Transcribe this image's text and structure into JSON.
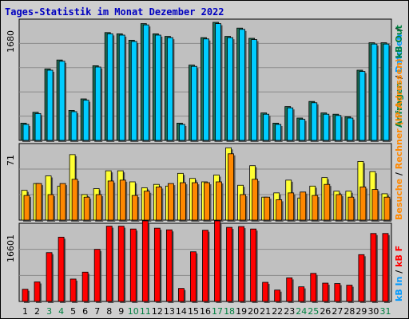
{
  "title": "Tages-Statistik im Monat Dezember 2022",
  "colors": {
    "frame_bg": "#cfcfcf",
    "plot_bg": "#c0c0c0",
    "grid": "#8a8a8a",
    "title": "#0000c0",
    "anfragen": "#00ccff",
    "dateien": "#0099ff",
    "rechner": "#ffff33",
    "besuche": "#ff8800",
    "kbf": "#ff0000",
    "weekend": "#008040",
    "weekday": "#000000"
  },
  "chart_data": [
    {
      "type": "bar",
      "panel": "top",
      "ytick_label": "1680",
      "ylim": [
        0,
        1900
      ],
      "x": [
        1,
        2,
        3,
        4,
        5,
        6,
        7,
        8,
        9,
        10,
        11,
        12,
        13,
        14,
        15,
        16,
        17,
        18,
        19,
        20,
        21,
        22,
        23,
        24,
        25,
        26,
        27,
        28,
        29,
        30,
        31
      ],
      "series": [
        {
          "name": "Anfragen",
          "values": [
            270,
            440,
            1120,
            1260,
            470,
            650,
            1170,
            1690,
            1670,
            1570,
            1830,
            1670,
            1630,
            270,
            1180,
            1610,
            1850,
            1630,
            1760,
            1600,
            430,
            270,
            530,
            350,
            610,
            430,
            410,
            370,
            1100,
            1530,
            1530
          ]
        },
        {
          "name": "Dateien",
          "values": [
            250,
            420,
            1100,
            1240,
            450,
            630,
            1150,
            1670,
            1650,
            1550,
            1810,
            1650,
            1610,
            250,
            1160,
            1590,
            1830,
            1610,
            1740,
            1580,
            410,
            250,
            510,
            330,
            590,
            410,
            390,
            350,
            1080,
            1510,
            1510
          ]
        }
      ]
    },
    {
      "type": "bar",
      "panel": "middle",
      "ytick_label": "71",
      "ylim": [
        0,
        90
      ],
      "x": [
        1,
        2,
        3,
        4,
        5,
        6,
        7,
        8,
        9,
        10,
        11,
        12,
        13,
        14,
        15,
        16,
        17,
        18,
        19,
        20,
        21,
        22,
        23,
        24,
        25,
        26,
        27,
        28,
        29,
        30,
        31
      ],
      "series": [
        {
          "name": "Rechner",
          "values": [
            35,
            43,
            52,
            40,
            77,
            30,
            37,
            58,
            58,
            45,
            38,
            42,
            40,
            55,
            49,
            45,
            53,
            85,
            41,
            64,
            27,
            32,
            47,
            26,
            40,
            50,
            34,
            34,
            69,
            57,
            31
          ]
        },
        {
          "name": "Besuche",
          "values": [
            29,
            43,
            30,
            43,
            48,
            27,
            30,
            46,
            47,
            29,
            34,
            39,
            43,
            44,
            44,
            44,
            45,
            78,
            30,
            48,
            27,
            24,
            32,
            33,
            29,
            42,
            30,
            27,
            39,
            36,
            27
          ]
        }
      ]
    },
    {
      "type": "bar",
      "panel": "bottom",
      "ytick_label": "16601",
      "ylim": [
        0,
        19200
      ],
      "x": [
        1,
        2,
        3,
        4,
        5,
        6,
        7,
        8,
        9,
        10,
        11,
        12,
        13,
        14,
        15,
        16,
        17,
        18,
        19,
        20,
        21,
        22,
        23,
        24,
        25,
        26,
        27,
        28,
        29,
        30,
        31
      ],
      "series": [
        {
          "name": "kB F",
          "values": [
            3000,
            4800,
            12000,
            15800,
            5500,
            7200,
            12800,
            18500,
            18500,
            17800,
            19800,
            18000,
            17600,
            3200,
            12200,
            17500,
            19800,
            18200,
            18400,
            17800,
            4700,
            2800,
            5800,
            3600,
            6900,
            4500,
            4400,
            4000,
            11500,
            16700,
            16700
          ]
        }
      ]
    }
  ],
  "right_legend": [
    {
      "text": "Anfragen",
      "color": "#008040",
      "panel": "top"
    },
    {
      "text": " / ",
      "color": "#000000",
      "panel": "top"
    },
    {
      "text": "Dateien",
      "color": "#0099ff",
      "panel": "top"
    },
    {
      "text": " / ",
      "color": "#000000",
      "panel": "top"
    },
    {
      "text": "Besuche",
      "color": "#ff8800",
      "panel": "middle"
    },
    {
      "text": " / ",
      "color": "#000000",
      "panel": "middle"
    },
    {
      "text": "Rechner (IP-Adressen)",
      "color": "#ff8800",
      "panel": "middle"
    },
    {
      "text": "kB Out",
      "color": "#008040",
      "panel": "middle"
    },
    {
      "text": "kB In",
      "color": "#0099ff",
      "panel": "bottom"
    },
    {
      "text": " / ",
      "color": "#000000",
      "panel": "bottom"
    },
    {
      "text": "kB F",
      "color": "#ff0000",
      "panel": "bottom"
    }
  ],
  "day_labels": [
    "1",
    "2",
    "3",
    "4",
    "5",
    "6",
    "7",
    "8",
    "9",
    "10",
    "11",
    "12",
    "13",
    "14",
    "15",
    "16",
    "17",
    "18",
    "19",
    "20",
    "21",
    "22",
    "23",
    "24",
    "25",
    "26",
    "27",
    "28",
    "29",
    "30",
    "31"
  ],
  "weekend_days": [
    3,
    4,
    10,
    11,
    17,
    18,
    24,
    25,
    31
  ]
}
